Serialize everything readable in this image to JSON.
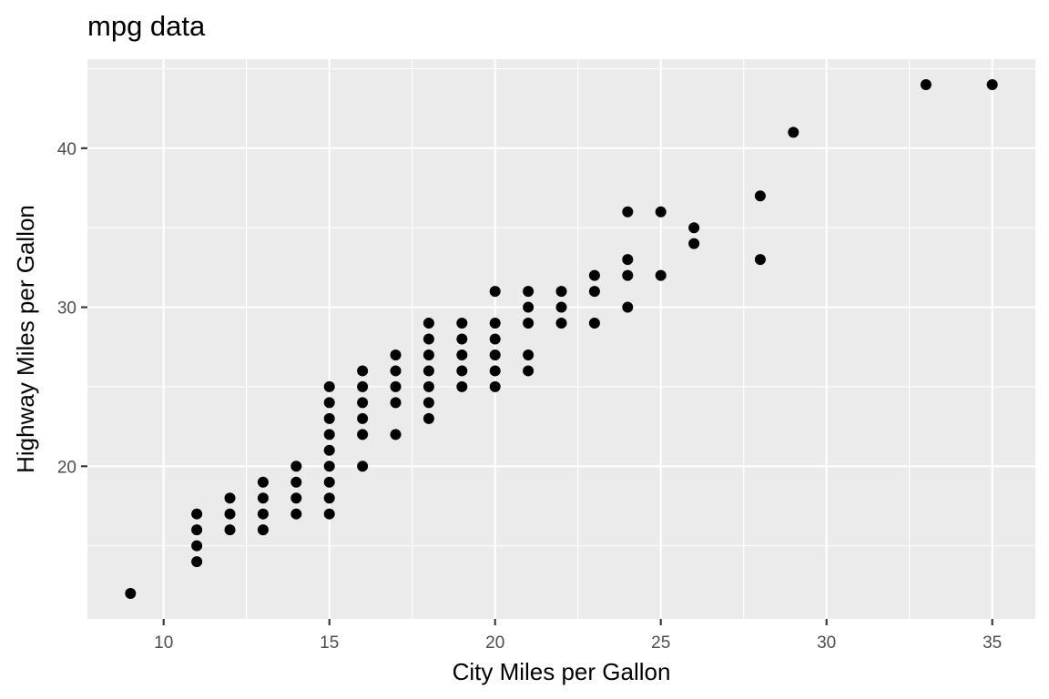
{
  "chart_data": {
    "type": "scatter",
    "title": "mpg data",
    "xlabel": "City Miles per Gallon",
    "ylabel": "Highway Miles per Gallon",
    "xlim": [
      7.7,
      36.3
    ],
    "ylim": [
      10.4,
      45.6
    ],
    "x_ticks": [
      10,
      15,
      20,
      25,
      30,
      35
    ],
    "x_tick_labels": [
      "10",
      "15",
      "20",
      "25",
      "30",
      "35"
    ],
    "y_ticks": [
      20,
      30,
      40
    ],
    "y_tick_labels": [
      "20",
      "30",
      "40"
    ],
    "x_minor_ticks": [
      7.5,
      12.5,
      17.5,
      22.5,
      27.5,
      32.5
    ],
    "y_minor_ticks": [
      15,
      25,
      35,
      45
    ],
    "grid": true,
    "legend": "none",
    "point_color": "#000000",
    "panel_color": "#ebebeb",
    "points": [
      {
        "x": 9,
        "y": 12
      },
      {
        "x": 11,
        "y": 14
      },
      {
        "x": 11,
        "y": 15
      },
      {
        "x": 11,
        "y": 16
      },
      {
        "x": 11,
        "y": 17
      },
      {
        "x": 12,
        "y": 16
      },
      {
        "x": 12,
        "y": 17
      },
      {
        "x": 12,
        "y": 18
      },
      {
        "x": 13,
        "y": 16
      },
      {
        "x": 13,
        "y": 17
      },
      {
        "x": 13,
        "y": 18
      },
      {
        "x": 13,
        "y": 19
      },
      {
        "x": 14,
        "y": 17
      },
      {
        "x": 14,
        "y": 18
      },
      {
        "x": 14,
        "y": 19
      },
      {
        "x": 14,
        "y": 20
      },
      {
        "x": 15,
        "y": 17
      },
      {
        "x": 15,
        "y": 18
      },
      {
        "x": 15,
        "y": 19
      },
      {
        "x": 15,
        "y": 20
      },
      {
        "x": 15,
        "y": 21
      },
      {
        "x": 15,
        "y": 22
      },
      {
        "x": 15,
        "y": 23
      },
      {
        "x": 15,
        "y": 24
      },
      {
        "x": 15,
        "y": 25
      },
      {
        "x": 16,
        "y": 20
      },
      {
        "x": 16,
        "y": 22
      },
      {
        "x": 16,
        "y": 23
      },
      {
        "x": 16,
        "y": 24
      },
      {
        "x": 16,
        "y": 25
      },
      {
        "x": 16,
        "y": 26
      },
      {
        "x": 17,
        "y": 22
      },
      {
        "x": 17,
        "y": 24
      },
      {
        "x": 17,
        "y": 25
      },
      {
        "x": 17,
        "y": 26
      },
      {
        "x": 17,
        "y": 27
      },
      {
        "x": 18,
        "y": 23
      },
      {
        "x": 18,
        "y": 24
      },
      {
        "x": 18,
        "y": 25
      },
      {
        "x": 18,
        "y": 26
      },
      {
        "x": 18,
        "y": 27
      },
      {
        "x": 18,
        "y": 28
      },
      {
        "x": 18,
        "y": 29
      },
      {
        "x": 19,
        "y": 25
      },
      {
        "x": 19,
        "y": 26
      },
      {
        "x": 19,
        "y": 27
      },
      {
        "x": 19,
        "y": 28
      },
      {
        "x": 19,
        "y": 29
      },
      {
        "x": 20,
        "y": 25
      },
      {
        "x": 20,
        "y": 26
      },
      {
        "x": 20,
        "y": 27
      },
      {
        "x": 20,
        "y": 28
      },
      {
        "x": 20,
        "y": 29
      },
      {
        "x": 20,
        "y": 31
      },
      {
        "x": 21,
        "y": 26
      },
      {
        "x": 21,
        "y": 27
      },
      {
        "x": 21,
        "y": 29
      },
      {
        "x": 21,
        "y": 30
      },
      {
        "x": 21,
        "y": 31
      },
      {
        "x": 22,
        "y": 29
      },
      {
        "x": 22,
        "y": 30
      },
      {
        "x": 22,
        "y": 31
      },
      {
        "x": 23,
        "y": 29
      },
      {
        "x": 23,
        "y": 31
      },
      {
        "x": 23,
        "y": 32
      },
      {
        "x": 24,
        "y": 30
      },
      {
        "x": 24,
        "y": 32
      },
      {
        "x": 24,
        "y": 33
      },
      {
        "x": 24,
        "y": 36
      },
      {
        "x": 25,
        "y": 32
      },
      {
        "x": 25,
        "y": 36
      },
      {
        "x": 26,
        "y": 34
      },
      {
        "x": 26,
        "y": 35
      },
      {
        "x": 28,
        "y": 33
      },
      {
        "x": 28,
        "y": 37
      },
      {
        "x": 29,
        "y": 41
      },
      {
        "x": 33,
        "y": 44
      },
      {
        "x": 35,
        "y": 44
      }
    ]
  }
}
